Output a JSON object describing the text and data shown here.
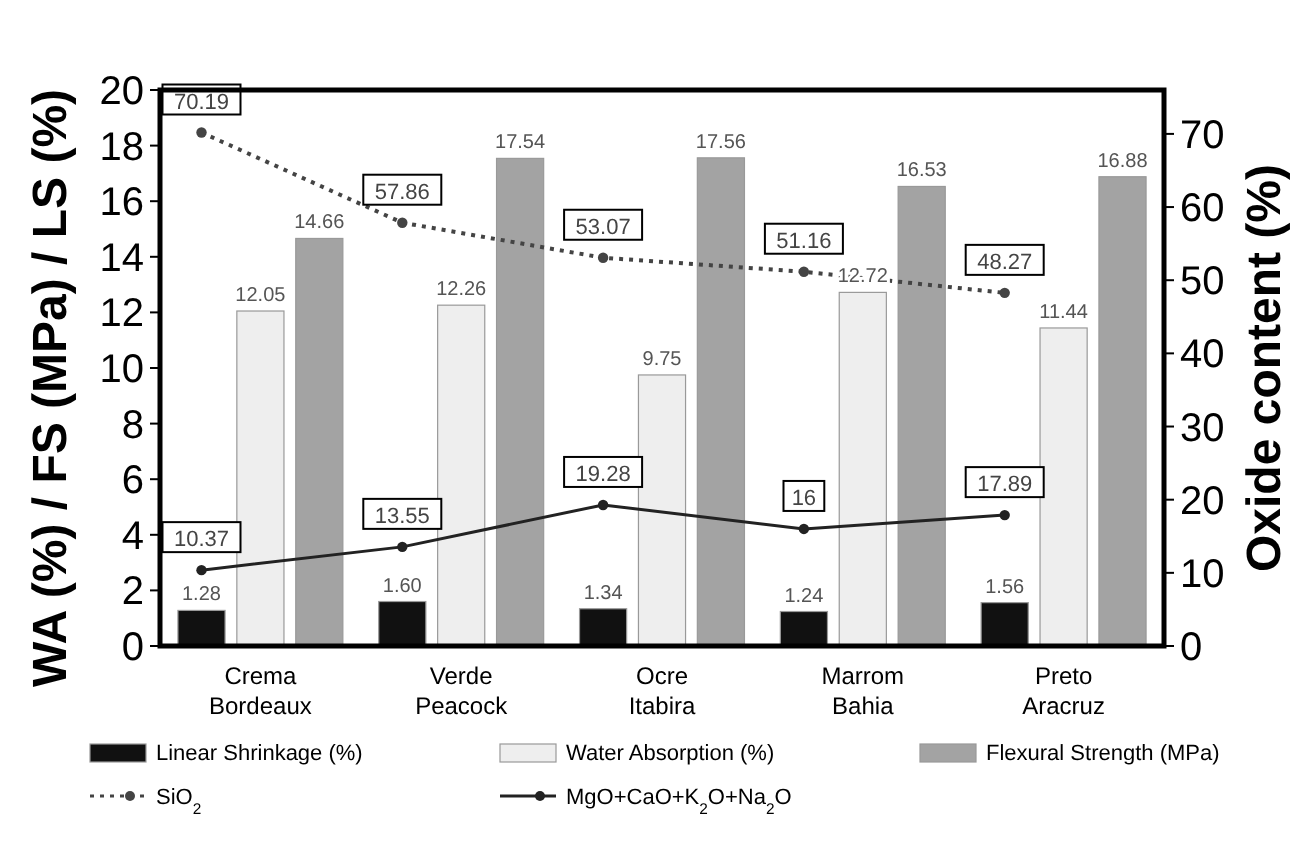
{
  "chart_data": {
    "type": "bar",
    "ylabel": "WA (%) / FS (MPa) / LS (%)",
    "y2label": "Oxide content (%)",
    "categories": [
      "Crema Bordeaux",
      "Verde Peacock",
      "Ocre Itabira",
      "Marrom Bahia",
      "Preto Aracruz"
    ],
    "series": [
      {
        "name": "Linear Shrinkage (%)",
        "color": "#111111",
        "values": [
          1.28,
          1.6,
          1.34,
          1.24,
          1.56
        ],
        "value_labels": [
          "1.28",
          "1.60",
          "1.34",
          "1.24",
          "1.56"
        ]
      },
      {
        "name": "Water Absorption (%)",
        "color": "#eeeeee",
        "values": [
          12.05,
          12.26,
          9.75,
          12.72,
          11.44
        ],
        "value_labels": [
          "12.05",
          "12.26",
          "9.75",
          "12.72",
          "11.44"
        ]
      },
      {
        "name": "Flexural Strength (MPa)",
        "color": "#a3a3a3",
        "values": [
          14.66,
          17.54,
          17.56,
          16.53,
          16.88
        ],
        "value_labels": [
          "14.66",
          "17.54",
          "17.56",
          "16.53",
          "16.88"
        ]
      },
      {
        "name": "SiO$_{2}$",
        "type": "line",
        "axis": "y2",
        "color": "#444444",
        "line_style": "dotted",
        "marker": "circle",
        "values": [
          70.19,
          57.86,
          53.07,
          51.16,
          48.27
        ],
        "value_labels": [
          "70.19",
          "57.86",
          "53.07",
          "51.16",
          "48.27"
        ]
      },
      {
        "name": "MgO+CaO+K$_{2}$O+Na$_{2}$O",
        "type": "line",
        "axis": "y2",
        "color": "#222222",
        "line_style": "solid",
        "marker": "circle",
        "values": [
          10.37,
          13.55,
          19.28,
          16,
          17.89
        ],
        "value_labels": [
          "10.37",
          "13.55",
          "19.28",
          "16",
          "17.89"
        ]
      }
    ],
    "ylim": [
      0,
      20
    ],
    "yticks": [
      0,
      2,
      4,
      6,
      8,
      10,
      12,
      14,
      16,
      18,
      20
    ],
    "y2lim": [
      0,
      76
    ],
    "y2ticks": [
      0,
      10,
      20,
      30,
      40,
      50,
      60,
      70
    ],
    "grid": false,
    "legend": "bottom"
  }
}
